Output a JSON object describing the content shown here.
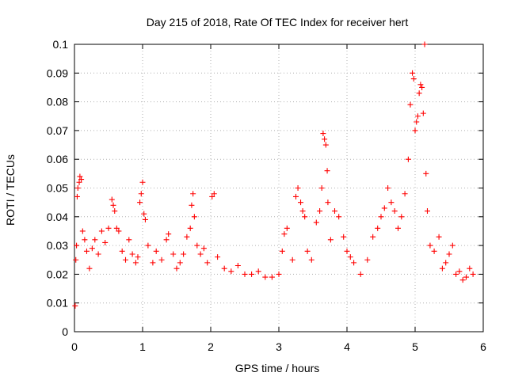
{
  "chart_data": {
    "type": "scatter",
    "title": "Day 215 of 2018, Rate Of TEC Index for receiver hert",
    "xlabel": "GPS time / hours",
    "ylabel": "ROTI / TECUs",
    "xlim": [
      0,
      6
    ],
    "ylim": [
      0,
      0.1
    ],
    "xticks": [
      0,
      1,
      2,
      3,
      4,
      5,
      6
    ],
    "yticks": [
      0,
      0.01,
      0.02,
      0.03,
      0.04,
      0.05,
      0.06,
      0.07,
      0.08,
      0.09,
      0.1
    ],
    "xtick_labels": [
      "0",
      "1",
      "2",
      "3",
      "4",
      "5",
      "6"
    ],
    "ytick_labels": [
      "0",
      "0.01",
      "0.02",
      "0.03",
      "0.04",
      "0.05",
      "0.06",
      "0.07",
      "0.08",
      "0.09",
      "0.1"
    ],
    "grid": true,
    "marker": "+",
    "series": [
      {
        "name": "ROTI",
        "color": "#ff0000",
        "points": [
          [
            0.01,
            0.009
          ],
          [
            0.02,
            0.025
          ],
          [
            0.03,
            0.03
          ],
          [
            0.04,
            0.047
          ],
          [
            0.05,
            0.05
          ],
          [
            0.07,
            0.052
          ],
          [
            0.08,
            0.054
          ],
          [
            0.1,
            0.053
          ],
          [
            0.12,
            0.035
          ],
          [
            0.15,
            0.032
          ],
          [
            0.18,
            0.028
          ],
          [
            0.22,
            0.022
          ],
          [
            0.26,
            0.029
          ],
          [
            0.3,
            0.032
          ],
          [
            0.35,
            0.027
          ],
          [
            0.4,
            0.035
          ],
          [
            0.45,
            0.031
          ],
          [
            0.5,
            0.036
          ],
          [
            0.55,
            0.046
          ],
          [
            0.57,
            0.044
          ],
          [
            0.59,
            0.042
          ],
          [
            0.62,
            0.036
          ],
          [
            0.65,
            0.035
          ],
          [
            0.7,
            0.028
          ],
          [
            0.75,
            0.025
          ],
          [
            0.8,
            0.032
          ],
          [
            0.85,
            0.027
          ],
          [
            0.9,
            0.024
          ],
          [
            0.93,
            0.026
          ],
          [
            0.96,
            0.045
          ],
          [
            0.98,
            0.048
          ],
          [
            1.0,
            0.052
          ],
          [
            1.02,
            0.041
          ],
          [
            1.04,
            0.039
          ],
          [
            1.08,
            0.03
          ],
          [
            1.15,
            0.024
          ],
          [
            1.2,
            0.028
          ],
          [
            1.28,
            0.025
          ],
          [
            1.35,
            0.032
          ],
          [
            1.38,
            0.034
          ],
          [
            1.45,
            0.027
          ],
          [
            1.5,
            0.022
          ],
          [
            1.55,
            0.024
          ],
          [
            1.6,
            0.027
          ],
          [
            1.65,
            0.033
          ],
          [
            1.7,
            0.036
          ],
          [
            1.72,
            0.044
          ],
          [
            1.74,
            0.048
          ],
          [
            1.76,
            0.04
          ],
          [
            1.8,
            0.03
          ],
          [
            1.85,
            0.027
          ],
          [
            1.9,
            0.029
          ],
          [
            1.95,
            0.024
          ],
          [
            2.02,
            0.047
          ],
          [
            2.05,
            0.048
          ],
          [
            2.1,
            0.026
          ],
          [
            2.2,
            0.022
          ],
          [
            2.3,
            0.021
          ],
          [
            2.4,
            0.023
          ],
          [
            2.5,
            0.02
          ],
          [
            2.6,
            0.02
          ],
          [
            2.7,
            0.021
          ],
          [
            2.8,
            0.019
          ],
          [
            2.9,
            0.019
          ],
          [
            3.0,
            0.02
          ],
          [
            3.05,
            0.028
          ],
          [
            3.08,
            0.034
          ],
          [
            3.12,
            0.036
          ],
          [
            3.2,
            0.025
          ],
          [
            3.25,
            0.047
          ],
          [
            3.28,
            0.05
          ],
          [
            3.32,
            0.045
          ],
          [
            3.35,
            0.042
          ],
          [
            3.38,
            0.04
          ],
          [
            3.42,
            0.028
          ],
          [
            3.48,
            0.025
          ],
          [
            3.55,
            0.038
          ],
          [
            3.6,
            0.042
          ],
          [
            3.63,
            0.05
          ],
          [
            3.65,
            0.069
          ],
          [
            3.67,
            0.067
          ],
          [
            3.69,
            0.065
          ],
          [
            3.71,
            0.056
          ],
          [
            3.72,
            0.045
          ],
          [
            3.76,
            0.032
          ],
          [
            3.82,
            0.042
          ],
          [
            3.88,
            0.04
          ],
          [
            3.95,
            0.033
          ],
          [
            4.0,
            0.028
          ],
          [
            4.05,
            0.026
          ],
          [
            4.1,
            0.024
          ],
          [
            4.2,
            0.02
          ],
          [
            4.3,
            0.025
          ],
          [
            4.38,
            0.033
          ],
          [
            4.45,
            0.036
          ],
          [
            4.5,
            0.04
          ],
          [
            4.55,
            0.043
          ],
          [
            4.6,
            0.05
          ],
          [
            4.65,
            0.045
          ],
          [
            4.7,
            0.042
          ],
          [
            4.75,
            0.036
          ],
          [
            4.8,
            0.04
          ],
          [
            4.85,
            0.048
          ],
          [
            4.9,
            0.06
          ],
          [
            4.93,
            0.079
          ],
          [
            4.96,
            0.09
          ],
          [
            4.98,
            0.088
          ],
          [
            5.0,
            0.07
          ],
          [
            5.02,
            0.073
          ],
          [
            5.04,
            0.075
          ],
          [
            5.06,
            0.083
          ],
          [
            5.08,
            0.086
          ],
          [
            5.1,
            0.085
          ],
          [
            5.12,
            0.076
          ],
          [
            5.14,
            0.1
          ],
          [
            5.16,
            0.055
          ],
          [
            5.18,
            0.042
          ],
          [
            5.22,
            0.03
          ],
          [
            5.28,
            0.028
          ],
          [
            5.35,
            0.033
          ],
          [
            5.4,
            0.022
          ],
          [
            5.45,
            0.024
          ],
          [
            5.5,
            0.027
          ],
          [
            5.55,
            0.03
          ],
          [
            5.6,
            0.02
          ],
          [
            5.65,
            0.021
          ],
          [
            5.7,
            0.018
          ],
          [
            5.75,
            0.019
          ],
          [
            5.8,
            0.022
          ],
          [
            5.85,
            0.02
          ]
        ]
      }
    ]
  }
}
